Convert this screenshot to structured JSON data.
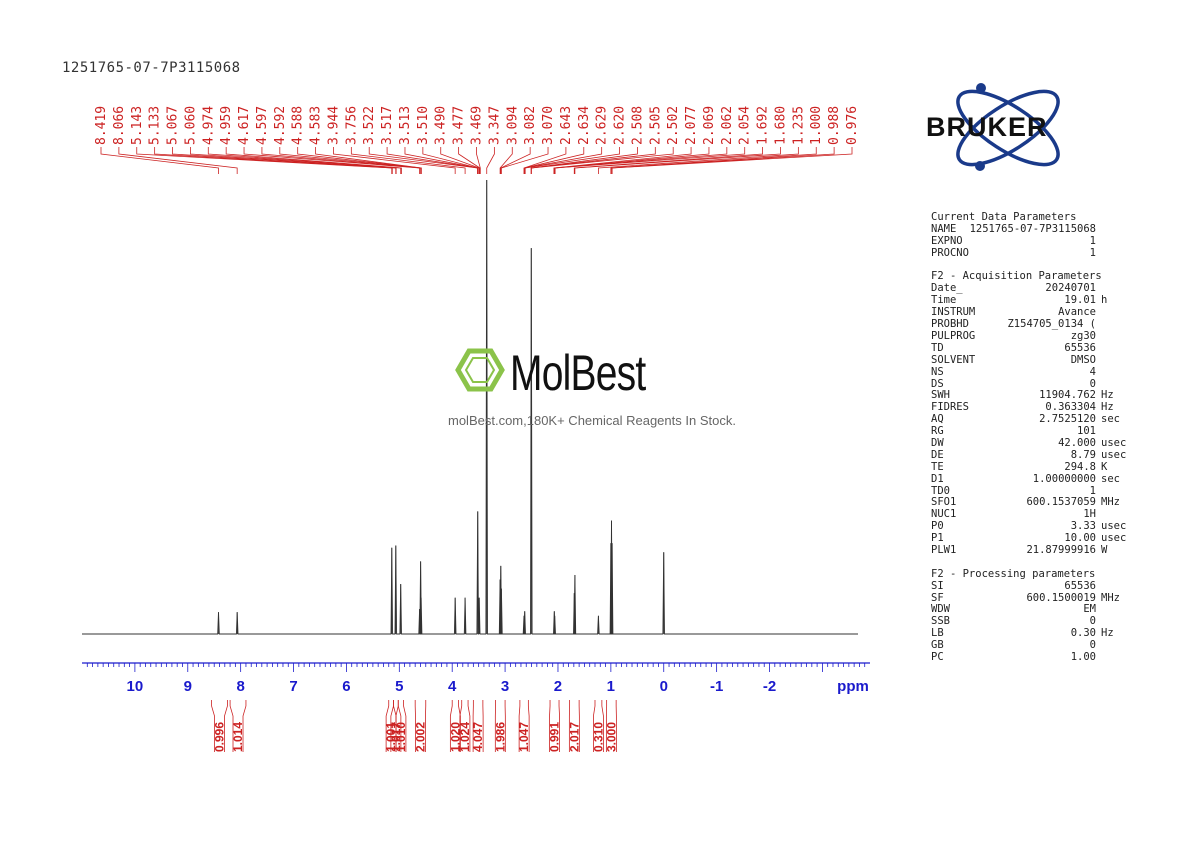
{
  "sample_id": "1251765-07-7P3115068",
  "watermark": {
    "brand": "MolBest",
    "tagline": "molBest.com,180K+ Chemical Reagents In Stock."
  },
  "logo": {
    "text": "BRUKER"
  },
  "parameters": {
    "current": {
      "heading": "Current Data Parameters",
      "rows": [
        {
          "k": "NAME",
          "v": "1251765-07-7P3115068",
          "u": ""
        },
        {
          "k": "EXPNO",
          "v": "1",
          "u": ""
        },
        {
          "k": "PROCNO",
          "v": "1",
          "u": ""
        }
      ]
    },
    "acquisition": {
      "heading": "F2 - Acquisition Parameters",
      "rows": [
        {
          "k": "Date_",
          "v": "20240701",
          "u": ""
        },
        {
          "k": "Time",
          "v": "19.01",
          "u": "h"
        },
        {
          "k": "INSTRUM",
          "v": "Avance",
          "u": ""
        },
        {
          "k": "PROBHD",
          "v": "Z154705_0134 (",
          "u": ""
        },
        {
          "k": "PULPROG",
          "v": "zg30",
          "u": ""
        },
        {
          "k": "TD",
          "v": "65536",
          "u": ""
        },
        {
          "k": "SOLVENT",
          "v": "DMSO",
          "u": ""
        },
        {
          "k": "NS",
          "v": "4",
          "u": ""
        },
        {
          "k": "DS",
          "v": "0",
          "u": ""
        },
        {
          "k": "SWH",
          "v": "11904.762",
          "u": "Hz"
        },
        {
          "k": "FIDRES",
          "v": "0.363304",
          "u": "Hz"
        },
        {
          "k": "AQ",
          "v": "2.7525120",
          "u": "sec"
        },
        {
          "k": "RG",
          "v": "101",
          "u": ""
        },
        {
          "k": "DW",
          "v": "42.000",
          "u": "usec"
        },
        {
          "k": "DE",
          "v": "8.79",
          "u": "usec"
        },
        {
          "k": "TE",
          "v": "294.8",
          "u": "K"
        },
        {
          "k": "D1",
          "v": "1.00000000",
          "u": "sec"
        },
        {
          "k": "TD0",
          "v": "1",
          "u": ""
        },
        {
          "k": "SFO1",
          "v": "600.1537059",
          "u": "MHz"
        },
        {
          "k": "NUC1",
          "v": "1H",
          "u": ""
        },
        {
          "k": "P0",
          "v": "3.33",
          "u": "usec"
        },
        {
          "k": "P1",
          "v": "10.00",
          "u": "usec"
        },
        {
          "k": "PLW1",
          "v": "21.87999916",
          "u": "W"
        }
      ]
    },
    "processing": {
      "heading": "F2 - Processing parameters",
      "rows": [
        {
          "k": "SI",
          "v": "65536",
          "u": ""
        },
        {
          "k": "SF",
          "v": "600.1500019",
          "u": "MHz"
        },
        {
          "k": "WDW",
          "v": "EM",
          "u": ""
        },
        {
          "k": "SSB",
          "v": "0",
          "u": ""
        },
        {
          "k": "LB",
          "v": "0.30",
          "u": "Hz"
        },
        {
          "k": "GB",
          "v": "0",
          "u": ""
        },
        {
          "k": "PC",
          "v": "1.00",
          "u": ""
        }
      ]
    }
  },
  "colors": {
    "peak_labels": "#cc2222",
    "axis": "#1a1acc",
    "spectrum": "#333333",
    "logo_accent": "#8bc34a",
    "bruker_blue": "#1a3a8a"
  },
  "chart_data": {
    "type": "line",
    "xlabel": "ppm",
    "xlim": [
      11.0,
      -3.9
    ],
    "x_reversed": true,
    "x_ticks": [
      "10",
      "9",
      "8",
      "7",
      "6",
      "5",
      "4",
      "3",
      "2",
      "1",
      "0",
      "-1",
      "-2"
    ],
    "peak_labels": [
      "8.419",
      "8.066",
      "5.143",
      "5.133",
      "5.067",
      "5.060",
      "4.974",
      "4.959",
      "4.617",
      "4.597",
      "4.592",
      "4.588",
      "4.583",
      "3.944",
      "3.756",
      "3.522",
      "3.517",
      "3.513",
      "3.510",
      "3.490",
      "3.477",
      "3.469",
      "3.347",
      "3.094",
      "3.082",
      "3.070",
      "2.643",
      "2.634",
      "2.629",
      "2.620",
      "2.508",
      "2.505",
      "2.502",
      "2.077",
      "2.069",
      "2.062",
      "2.054",
      "1.692",
      "1.680",
      "1.235",
      "1.000",
      "0.988",
      "0.976"
    ],
    "integrals": [
      {
        "value": "0.996",
        "from": 8.55,
        "to": 8.25
      },
      {
        "value": "1.014",
        "from": 8.2,
        "to": 7.9
      },
      {
        "value": "1.001",
        "from": 5.2,
        "to": 5.11
      },
      {
        "value": "1.017",
        "from": 5.11,
        "to": 5.02
      },
      {
        "value": "1.010",
        "from": 5.02,
        "to": 4.92
      },
      {
        "value": "2.002",
        "from": 4.7,
        "to": 4.5
      },
      {
        "value": "1.020",
        "from": 4.0,
        "to": 3.88
      },
      {
        "value": "1.024",
        "from": 3.82,
        "to": 3.7
      },
      {
        "value": "4.047",
        "from": 3.6,
        "to": 3.42
      },
      {
        "value": "1.986",
        "from": 3.18,
        "to": 3.0
      },
      {
        "value": "1.047",
        "from": 2.72,
        "to": 2.56
      },
      {
        "value": "0.991",
        "from": 2.15,
        "to": 1.98
      },
      {
        "value": "2.017",
        "from": 1.78,
        "to": 1.6
      },
      {
        "value": "0.310",
        "from": 1.3,
        "to": 1.17
      },
      {
        "value": "3.000",
        "from": 1.08,
        "to": 0.9
      }
    ],
    "peaks": [
      {
        "ppm": 8.419,
        "height": 0.048
      },
      {
        "ppm": 8.066,
        "height": 0.048
      },
      {
        "ppm": 5.143,
        "height": 0.19
      },
      {
        "ppm": 5.067,
        "height": 0.195
      },
      {
        "ppm": 4.974,
        "height": 0.11
      },
      {
        "ppm": 4.617,
        "height": 0.055
      },
      {
        "ppm": 4.597,
        "height": 0.16
      },
      {
        "ppm": 4.588,
        "height": 0.08
      },
      {
        "ppm": 3.944,
        "height": 0.08
      },
      {
        "ppm": 3.756,
        "height": 0.08
      },
      {
        "ppm": 3.517,
        "height": 0.27
      },
      {
        "ppm": 3.49,
        "height": 0.08
      },
      {
        "ppm": 3.347,
        "height": 1.0
      },
      {
        "ppm": 3.094,
        "height": 0.12
      },
      {
        "ppm": 3.082,
        "height": 0.15
      },
      {
        "ppm": 3.07,
        "height": 0.1
      },
      {
        "ppm": 2.643,
        "height": 0.04
      },
      {
        "ppm": 2.629,
        "height": 0.05
      },
      {
        "ppm": 2.505,
        "height": 0.85
      },
      {
        "ppm": 2.069,
        "height": 0.05
      },
      {
        "ppm": 2.062,
        "height": 0.04
      },
      {
        "ppm": 1.692,
        "height": 0.09
      },
      {
        "ppm": 1.68,
        "height": 0.13
      },
      {
        "ppm": 1.235,
        "height": 0.04
      },
      {
        "ppm": 1.0,
        "height": 0.2
      },
      {
        "ppm": 0.988,
        "height": 0.25
      },
      {
        "ppm": 0.976,
        "height": 0.2
      },
      {
        "ppm": 0.0,
        "height": 0.18
      }
    ]
  }
}
